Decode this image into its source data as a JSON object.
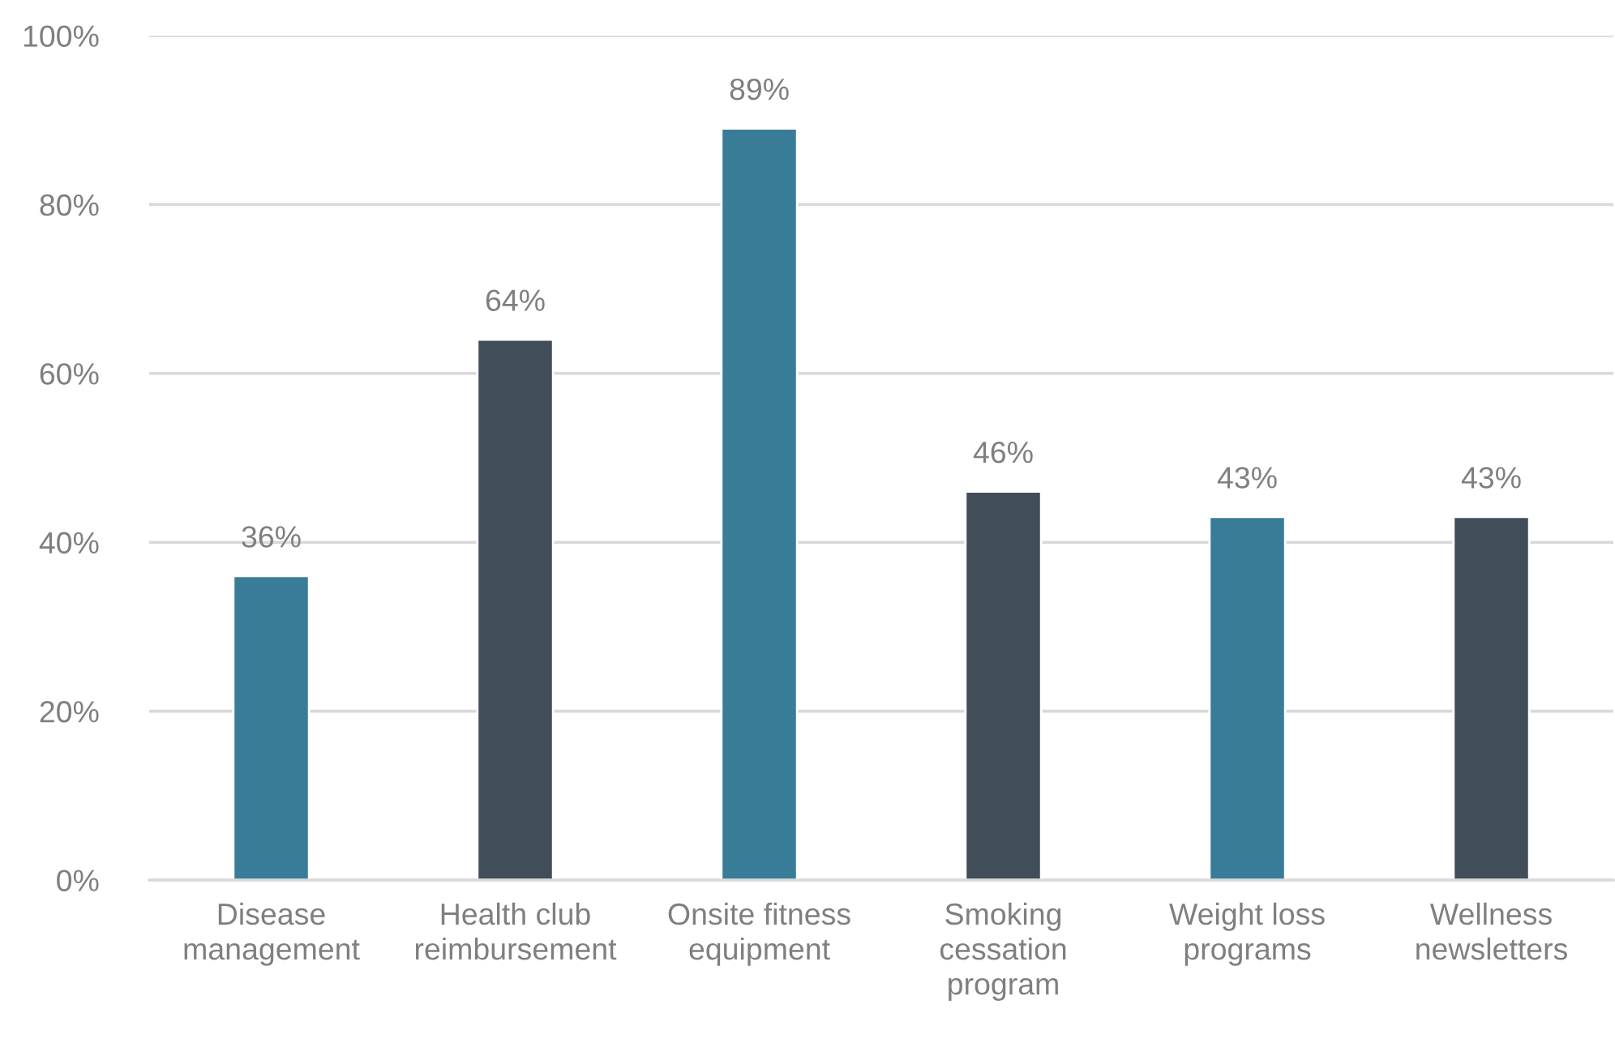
{
  "chart_data": {
    "type": "bar",
    "categories": [
      "Disease management",
      "Health club reimbursement",
      "Onsite fitness equipment",
      "Smoking cessation program",
      "Weight loss programs",
      "Wellness newsletters"
    ],
    "values": [
      36,
      64,
      89,
      46,
      43,
      43
    ],
    "colors": [
      "#387c98",
      "#424d5a",
      "#387c98",
      "#424d5a",
      "#387c98",
      "#424d5a"
    ],
    "value_labels": [
      "36%",
      "64%",
      "89%",
      "46%",
      "43%",
      "43%"
    ],
    "ylim": [
      0,
      100
    ],
    "yticks": [
      {
        "value": 0,
        "label": "0%"
      },
      {
        "value": 20,
        "label": "20%"
      },
      {
        "value": 40,
        "label": "40%"
      },
      {
        "value": 60,
        "label": "60%"
      },
      {
        "value": 80,
        "label": "80%"
      },
      {
        "value": 100,
        "label": "100%"
      }
    ],
    "grid": "y",
    "legend": false
  }
}
